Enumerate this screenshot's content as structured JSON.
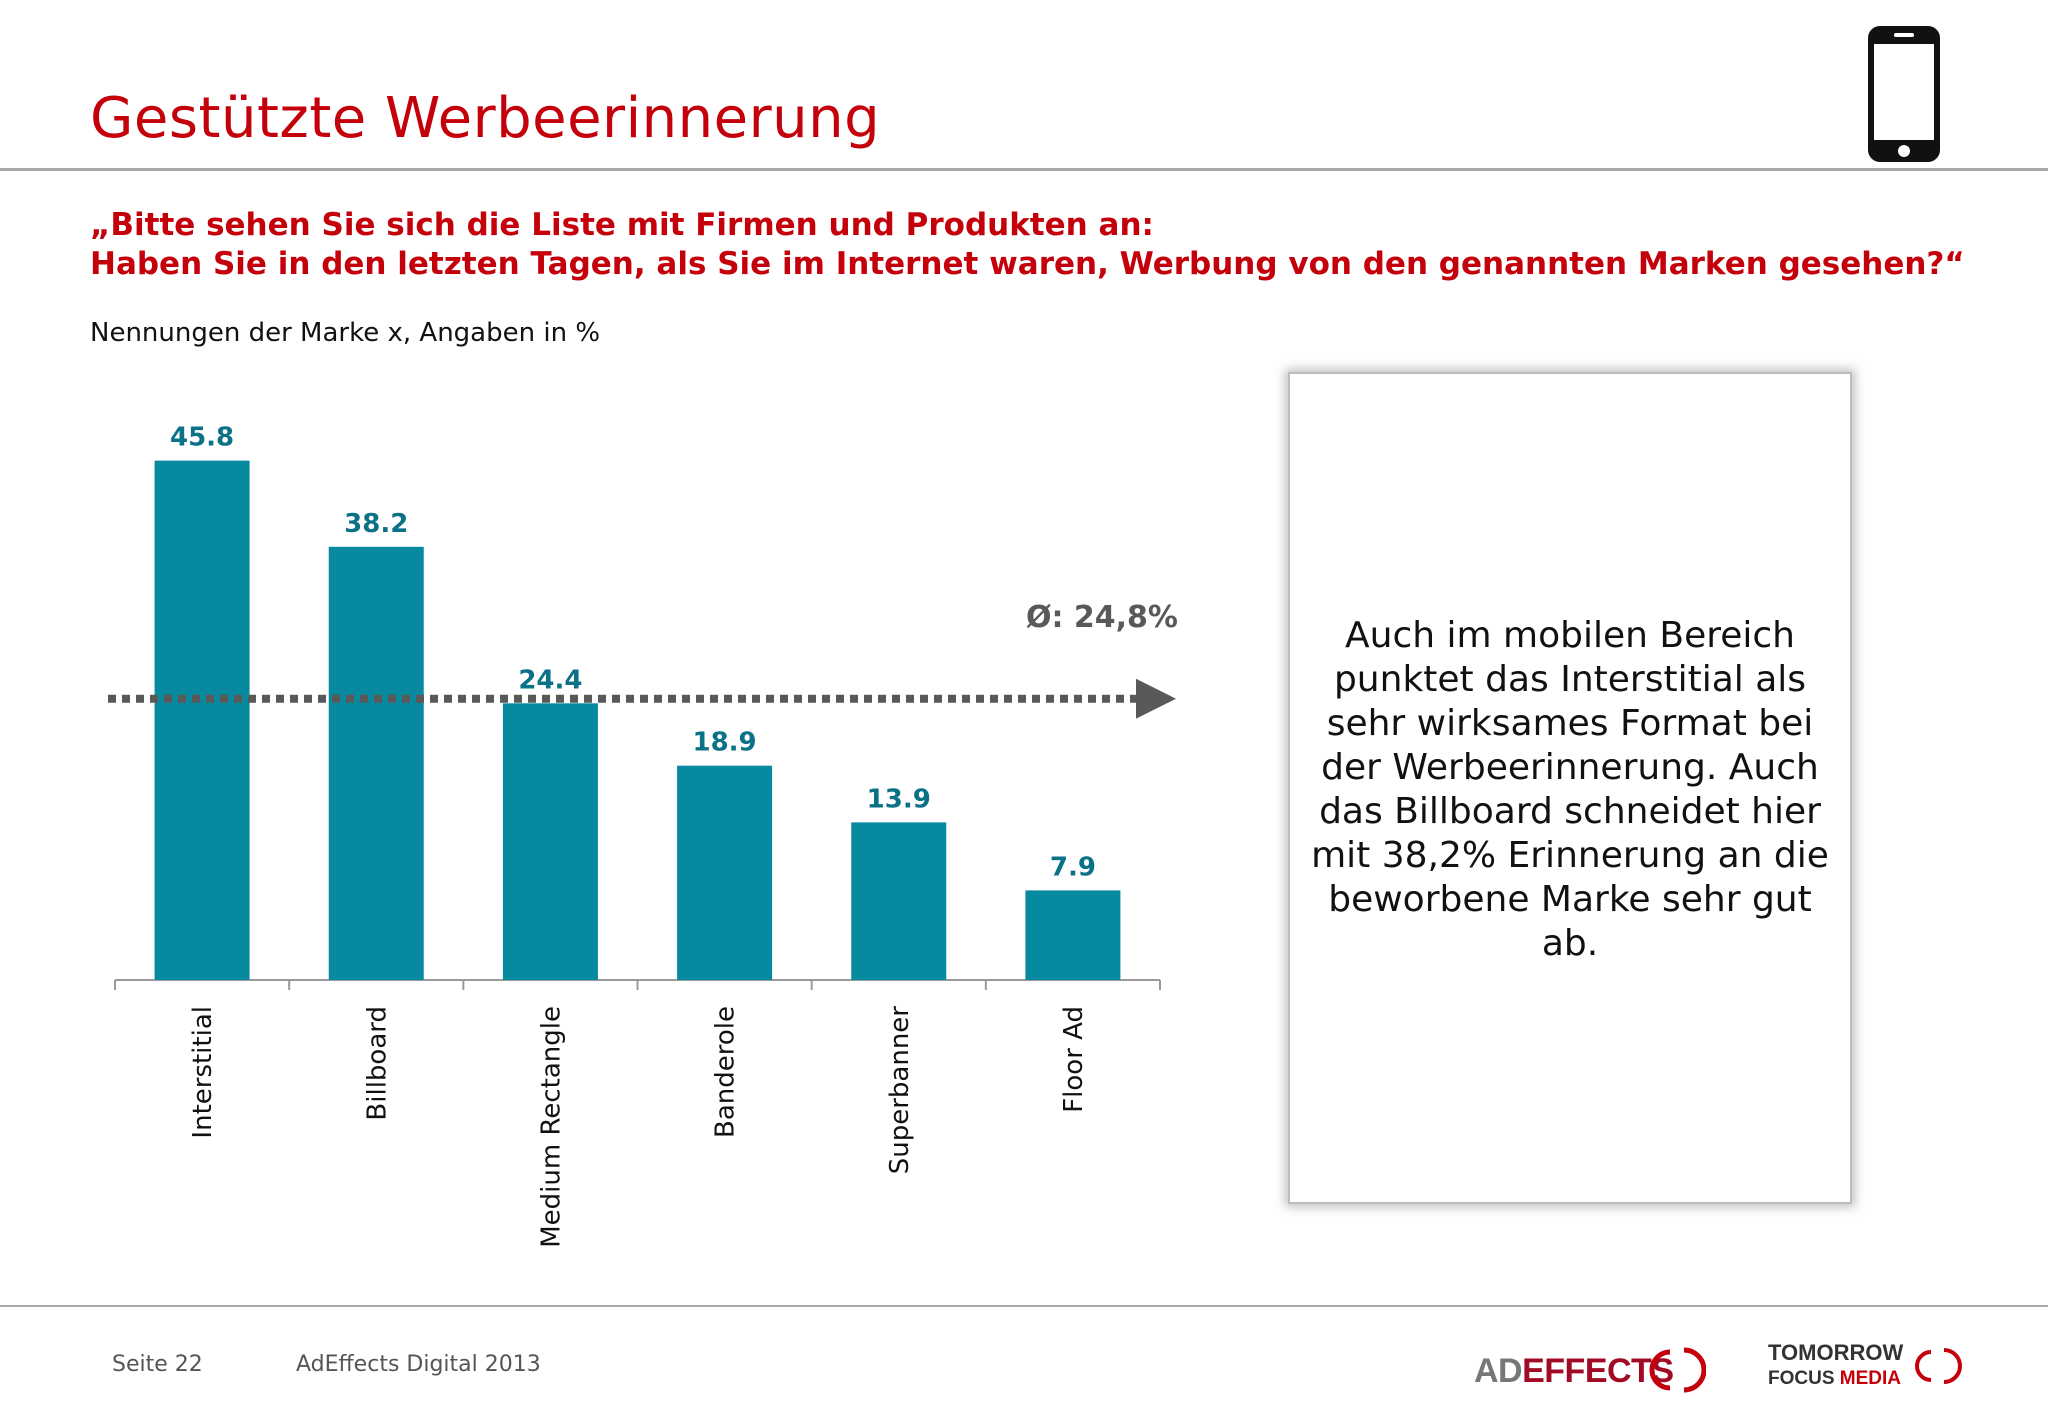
{
  "page": {
    "title": "Gestützte Werbeerinnerung",
    "question_line1": "„Bitte sehen Sie sich die Liste mit Firmen und Produkten an:",
    "question_line2": "Haben Sie in den letzten Tagen, als Sie im Internet waren, Werbung von den genannten Marken gesehen?“",
    "subtitle": "Nennungen der Marke x, Angaben in %",
    "phone_icon": "smartphone-icon",
    "textbox": "Auch im mobilen Bereich punktet das Interstitial als sehr wirksames Format bei der Werbeerinnerung. Auch das Billboard schneidet hier mit 38,2% Erinnerung an die beworbene Marke sehr gut ab.",
    "footer_page": "Seite 22",
    "footer_source": "AdEffects Digital 2013",
    "logo_adeffects": "AD EFFECTS",
    "logo_tfm_line1": "TOMORROW",
    "logo_tfm_line2": "FOCUS MEDIA"
  },
  "colors": {
    "brand_red": "#c4000b",
    "bar": "#078aa0",
    "bar_label": "#0b7186",
    "average_line": "#595959"
  },
  "chart_data": {
    "type": "bar",
    "categories": [
      "Interstitial",
      "Billboard",
      "Medium Rectangle",
      "Banderole",
      "Superbanner",
      "Floor Ad"
    ],
    "values": [
      45.8,
      38.2,
      24.4,
      18.9,
      13.9,
      7.9
    ],
    "data_labels": [
      "45.8",
      "38.2",
      "24.4",
      "18.9",
      "13.9",
      "7.9"
    ],
    "ylim": [
      0,
      50
    ],
    "grid": false,
    "average": {
      "value": 24.8,
      "label": "Ø: 24,8%"
    }
  }
}
